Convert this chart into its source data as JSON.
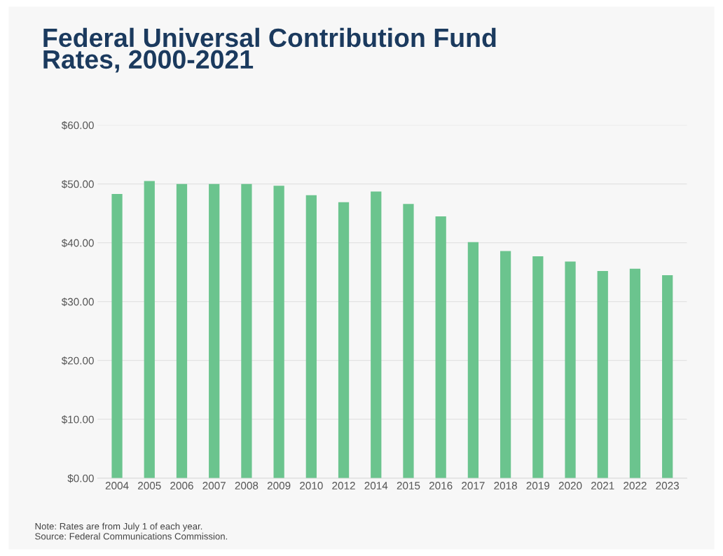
{
  "chart_data": {
    "type": "bar",
    "title": "Federal Universal Contribution Fund\nRates, 2000-2021",
    "categories": [
      "2004",
      "2005",
      "2006",
      "2007",
      "2008",
      "2009",
      "2010",
      "2012",
      "2014",
      "2015",
      "2016",
      "2017",
      "2018",
      "2019",
      "2020",
      "2021",
      "2022",
      "2023"
    ],
    "values": [
      48.3,
      50.5,
      50.0,
      50.0,
      50.0,
      49.7,
      48.1,
      46.9,
      48.7,
      46.6,
      44.5,
      40.1,
      38.6,
      37.7,
      36.8,
      35.2,
      35.6,
      34.5
    ],
    "color": "#6bc48e",
    "ylim": [
      0,
      60
    ],
    "yticks": [
      {
        "value": 0,
        "label": "$0.00"
      },
      {
        "value": 10,
        "label": "$10.00"
      },
      {
        "value": 20,
        "label": "$20.00"
      },
      {
        "value": 30,
        "label": "$30.00"
      },
      {
        "value": 40,
        "label": "$40.00"
      },
      {
        "value": 50,
        "label": "$50.00"
      },
      {
        "value": 60,
        "label": "$60.00"
      }
    ],
    "grid": "y",
    "annotations": [
      "Note: Rates are from July 1 of each year.",
      "Source: Federal Communications Commission."
    ]
  }
}
